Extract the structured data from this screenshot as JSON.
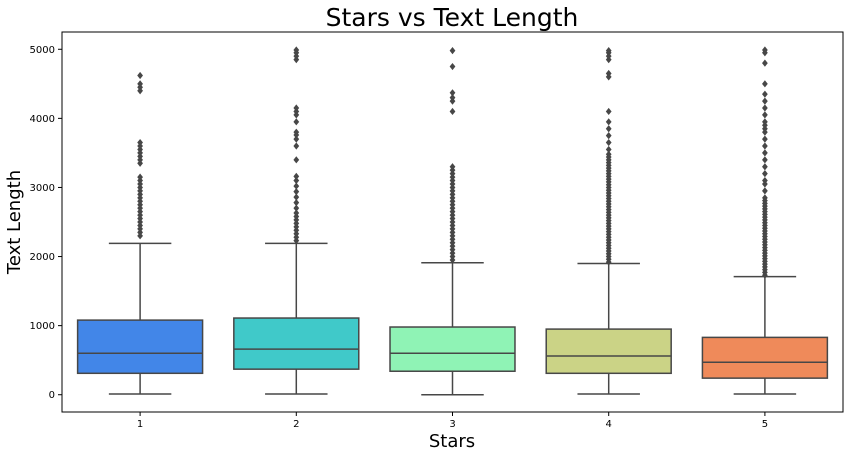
{
  "chart_data": {
    "type": "boxplot",
    "title": "Stars vs Text Length",
    "xlabel": "Stars",
    "ylabel": "Text Length",
    "ylim": [
      -250,
      5250
    ],
    "yticks": [
      0,
      1000,
      2000,
      3000,
      4000,
      5000
    ],
    "grid": false,
    "categories": [
      "1",
      "2",
      "3",
      "4",
      "5"
    ],
    "colors": [
      "#4286e8",
      "#40c9c9",
      "#8ff3b5",
      "#cbd386",
      "#ef8a5a"
    ],
    "boxes": [
      {
        "category": "1",
        "whisker_low": 10,
        "q1": 310,
        "median": 600,
        "q3": 1080,
        "whisker_high": 2190,
        "outliers": [
          2300,
          2350,
          2400,
          2450,
          2500,
          2550,
          2600,
          2650,
          2700,
          2750,
          2800,
          2850,
          2900,
          2950,
          3000,
          3050,
          3100,
          3150,
          3350,
          3400,
          3450,
          3500,
          3550,
          3600,
          3650,
          4400,
          4450,
          4500,
          4620
        ]
      },
      {
        "category": "2",
        "whisker_low": 10,
        "q1": 370,
        "median": 660,
        "q3": 1110,
        "whisker_high": 2190,
        "outliers": [
          2230,
          2280,
          2330,
          2380,
          2430,
          2480,
          2530,
          2580,
          2630,
          2700,
          2780,
          2860,
          2940,
          3020,
          3100,
          3160,
          3400,
          3600,
          3700,
          3760,
          3800,
          3950,
          4050,
          4100,
          4150,
          4850,
          4900,
          4950,
          4990
        ]
      },
      {
        "category": "3",
        "whisker_low": 0,
        "q1": 340,
        "median": 600,
        "q3": 980,
        "whisker_high": 1910,
        "outliers": [
          1950,
          2000,
          2050,
          2100,
          2150,
          2200,
          2250,
          2300,
          2350,
          2400,
          2450,
          2500,
          2550,
          2600,
          2650,
          2700,
          2750,
          2800,
          2850,
          2900,
          2950,
          3000,
          3050,
          3100,
          3150,
          3200,
          3250,
          3300,
          4100,
          4250,
          4300,
          4370,
          4750,
          4980
        ]
      },
      {
        "category": "4",
        "whisker_low": 10,
        "q1": 310,
        "median": 560,
        "q3": 950,
        "whisker_high": 1900,
        "outliers": [
          1920,
          1960,
          2000,
          2040,
          2080,
          2120,
          2160,
          2200,
          2240,
          2280,
          2320,
          2360,
          2400,
          2440,
          2480,
          2520,
          2560,
          2600,
          2640,
          2680,
          2720,
          2760,
          2800,
          2840,
          2880,
          2920,
          2960,
          3000,
          3040,
          3080,
          3120,
          3160,
          3200,
          3240,
          3280,
          3320,
          3360,
          3400,
          3440,
          3480,
          3550,
          3650,
          3750,
          3850,
          3950,
          4100,
          4600,
          4650,
          4850,
          4900,
          4950,
          4980
        ]
      },
      {
        "category": "5",
        "whisker_low": 10,
        "q1": 240,
        "median": 470,
        "q3": 830,
        "whisker_high": 1710,
        "outliers": [
          1730,
          1770,
          1810,
          1850,
          1890,
          1930,
          1970,
          2010,
          2050,
          2090,
          2130,
          2170,
          2210,
          2250,
          2290,
          2330,
          2370,
          2410,
          2450,
          2490,
          2530,
          2570,
          2610,
          2650,
          2690,
          2730,
          2770,
          2810,
          2850,
          2950,
          3050,
          3100,
          3200,
          3300,
          3400,
          3500,
          3600,
          3700,
          3800,
          3850,
          3900,
          3950,
          4050,
          4150,
          4250,
          4350,
          4500,
          4800,
          4950,
          4990
        ]
      }
    ]
  }
}
